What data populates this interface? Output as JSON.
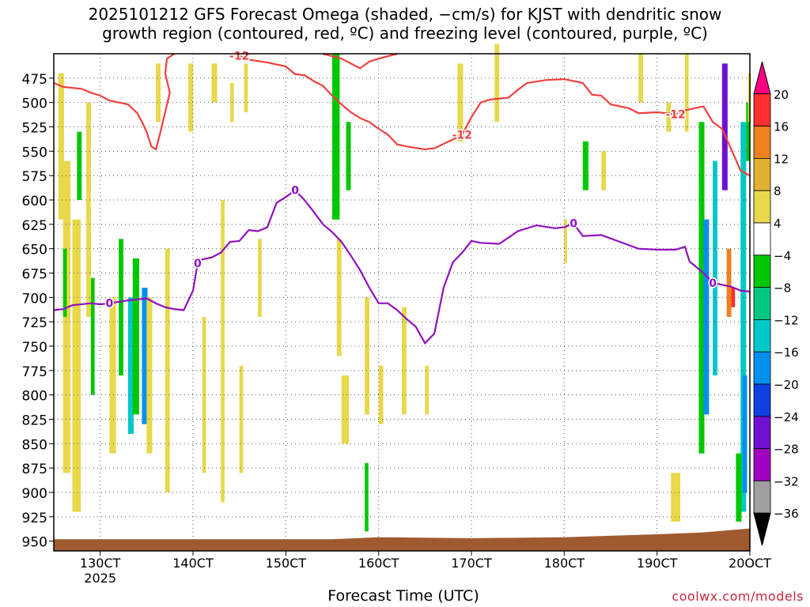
{
  "title_line1": "2025101212 GFS Forecast Omega (shaded, −cm/s) for KJST with dendritic snow",
  "title_line2": "growth region (contoured, red, ºC) and freezing level (contoured, purple, ºC)",
  "xlabel": "Forecast Time (UTC)",
  "credit": "coolwx.com/models",
  "chart_data": {
    "type": "heatmap",
    "x_axis": {
      "ticks": [
        {
          "value": 13,
          "label": "130CT",
          "sublabel": "2025"
        },
        {
          "value": 14,
          "label": "140CT"
        },
        {
          "value": 15,
          "label": "150CT"
        },
        {
          "value": 16,
          "label": "160CT"
        },
        {
          "value": 17,
          "label": "170CT"
        },
        {
          "value": 18,
          "label": "180CT"
        },
        {
          "value": 19,
          "label": "190CT"
        },
        {
          "value": 20,
          "label": "20OCT"
        }
      ],
      "range": [
        12.5,
        20
      ]
    },
    "y_axis": {
      "ticks": [
        475,
        500,
        525,
        550,
        575,
        600,
        625,
        650,
        675,
        700,
        725,
        750,
        775,
        800,
        825,
        850,
        875,
        900,
        925,
        950
      ],
      "range": [
        450,
        960
      ]
    },
    "grid": true,
    "colorbar": {
      "labels": [
        20,
        16,
        12,
        8,
        4,
        -4,
        -8,
        -12,
        -16,
        -20,
        -24,
        -28,
        -32,
        -36
      ],
      "colors": [
        "#ff0080",
        "#ff3030",
        "#f08020",
        "#e0b030",
        "#e8d84a",
        "#ffffff",
        "#00c800",
        "#00c880",
        "#00c8c8",
        "#0090f0",
        "#1040e0",
        "#7010d0",
        "#a000c0",
        "#a0a0a0",
        "#000000"
      ]
    },
    "freezing_level": {
      "label": "0",
      "color": "#9010c0",
      "points": [
        [
          12.5,
          713
        ],
        [
          12.6,
          712
        ],
        [
          12.7,
          708
        ],
        [
          12.9,
          706
        ],
        [
          13.0,
          707
        ],
        [
          13.1,
          706
        ],
        [
          13.3,
          703
        ],
        [
          13.5,
          701
        ],
        [
          13.6,
          706
        ],
        [
          13.7,
          710
        ],
        [
          13.8,
          712
        ],
        [
          13.9,
          713
        ],
        [
          14.0,
          693
        ],
        [
          14.05,
          665
        ],
        [
          14.1,
          661
        ],
        [
          14.2,
          659
        ],
        [
          14.3,
          654
        ],
        [
          14.4,
          643
        ],
        [
          14.5,
          642
        ],
        [
          14.6,
          631
        ],
        [
          14.7,
          632
        ],
        [
          14.8,
          628
        ],
        [
          14.9,
          603
        ],
        [
          15.0,
          597
        ],
        [
          15.1,
          590
        ],
        [
          15.2,
          600
        ],
        [
          15.3,
          612
        ],
        [
          15.4,
          625
        ],
        [
          15.5,
          633
        ],
        [
          15.6,
          643
        ],
        [
          15.7,
          657
        ],
        [
          15.8,
          672
        ],
        [
          15.9,
          690
        ],
        [
          16.0,
          706
        ],
        [
          16.1,
          706
        ],
        [
          16.2,
          713
        ],
        [
          16.3,
          722
        ],
        [
          16.4,
          730
        ],
        [
          16.5,
          747
        ],
        [
          16.6,
          737
        ],
        [
          16.7,
          690
        ],
        [
          16.8,
          664
        ],
        [
          16.9,
          654
        ],
        [
          17.0,
          642
        ],
        [
          17.1,
          644
        ],
        [
          17.3,
          645
        ],
        [
          17.5,
          632
        ],
        [
          17.7,
          626
        ],
        [
          17.9,
          629
        ],
        [
          18.0,
          628
        ],
        [
          18.1,
          624
        ],
        [
          18.2,
          637
        ],
        [
          18.4,
          636
        ],
        [
          18.6,
          643
        ],
        [
          18.8,
          650
        ],
        [
          19.0,
          651
        ],
        [
          19.2,
          651
        ],
        [
          19.3,
          648
        ],
        [
          19.35,
          663
        ],
        [
          19.5,
          675
        ],
        [
          19.6,
          685
        ],
        [
          19.8,
          689
        ],
        [
          19.9,
          693
        ],
        [
          20.0,
          694
        ]
      ]
    },
    "dendritic_contours": [
      {
        "label": "-12",
        "color": "#f04040",
        "points": [
          [
            12.5,
            480
          ],
          [
            12.6,
            484
          ],
          [
            12.8,
            486
          ],
          [
            12.9,
            490
          ],
          [
            13.0,
            493
          ],
          [
            13.1,
            498
          ],
          [
            13.3,
            502
          ],
          [
            13.4,
            511
          ],
          [
            13.45,
            520
          ],
          [
            13.5,
            530
          ],
          [
            13.55,
            545
          ],
          [
            13.6,
            548
          ],
          [
            13.65,
            530
          ],
          [
            13.7,
            510
          ],
          [
            13.75,
            490
          ],
          [
            13.7,
            470
          ],
          [
            13.72,
            455
          ],
          [
            13.8,
            450
          ]
        ]
      },
      {
        "label": "-12",
        "color": "#f04040",
        "points": [
          [
            14.5,
            452
          ],
          [
            14.6,
            456
          ],
          [
            14.8,
            459
          ],
          [
            15.0,
            463
          ],
          [
            15.1,
            471
          ],
          [
            15.2,
            472
          ],
          [
            15.3,
            478
          ],
          [
            15.4,
            483
          ],
          [
            15.5,
            493
          ],
          [
            15.6,
            502
          ],
          [
            15.7,
            510
          ],
          [
            15.8,
            516
          ],
          [
            15.9,
            520
          ],
          [
            16.0,
            527
          ],
          [
            16.1,
            533
          ],
          [
            16.2,
            543
          ],
          [
            16.3,
            545
          ],
          [
            16.5,
            548
          ],
          [
            16.6,
            547
          ],
          [
            16.8,
            538
          ],
          [
            16.9,
            533
          ],
          [
            17.0,
            515
          ],
          [
            17.1,
            500
          ],
          [
            17.2,
            497
          ],
          [
            17.4,
            495
          ],
          [
            17.5,
            487
          ],
          [
            17.6,
            480
          ],
          [
            17.8,
            477
          ],
          [
            18.0,
            476
          ],
          [
            18.2,
            480
          ],
          [
            18.3,
            492
          ],
          [
            18.4,
            493
          ],
          [
            18.5,
            502
          ],
          [
            18.7,
            506
          ],
          [
            18.8,
            511
          ],
          [
            19.0,
            510
          ],
          [
            19.2,
            512
          ],
          [
            19.3,
            508
          ],
          [
            19.5,
            504
          ],
          [
            19.6,
            520
          ],
          [
            19.7,
            527
          ],
          [
            19.8,
            548
          ],
          [
            19.9,
            570
          ],
          [
            20.0,
            575
          ]
        ]
      },
      {
        "label": "",
        "color": "#f04040",
        "points": [
          [
            15.4,
            450
          ],
          [
            15.6,
            455
          ],
          [
            15.8,
            465
          ],
          [
            15.9,
            458
          ],
          [
            16.0,
            455
          ],
          [
            16.2,
            450
          ]
        ]
      }
    ],
    "terrain_color": "#a05a30"
  }
}
